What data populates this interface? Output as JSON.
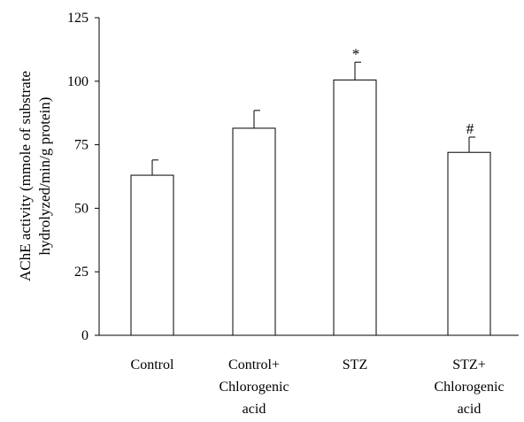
{
  "chart_data": {
    "type": "bar",
    "title": "",
    "xlabel": "",
    "ylabel_lines": [
      "AChE activity (mmole of substrate",
      "hydrolyzed/min/g protein)"
    ],
    "categories": [
      [
        "Control"
      ],
      [
        "Control+",
        "Chlorogenic",
        "acid"
      ],
      [
        "STZ"
      ],
      [
        "STZ+",
        "Chlorogenic",
        "acid"
      ]
    ],
    "values": [
      63,
      81.5,
      100.5,
      72
    ],
    "errors": [
      6,
      7,
      7,
      6
    ],
    "annotations": [
      "",
      "",
      "*",
      "#"
    ],
    "yticks": [
      0,
      25,
      50,
      75,
      100,
      125
    ],
    "ylim": [
      0,
      125
    ],
    "grid": false,
    "bar_fill": "#ffffff",
    "bar_stroke": "#000000"
  }
}
